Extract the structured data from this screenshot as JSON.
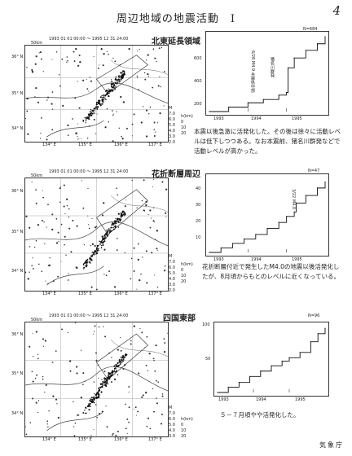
{
  "page_title": "周辺地域の地震活動　I",
  "page_number": "4",
  "agency": "気象庁",
  "sections": [
    {
      "heading": "北東延長領域",
      "date_range": "1993 01 01 00:00  ～  1995 12 31 24:00",
      "scale": "50km",
      "lat_labels": [
        "36° N",
        "35° N",
        "34° N"
      ],
      "lon_labels": [
        "134° E",
        "135° E",
        "136° E",
        "137° E"
      ],
      "legend_m_label": "M",
      "legend_m": [
        "7.0",
        "6.0",
        "5.0",
        "4.0",
        "3.0",
        "2.0"
      ],
      "legend_h_label": "h(km)",
      "legend_h": [
        "0",
        "10",
        "20"
      ],
      "count": "N=684",
      "graph_years": [
        "1993",
        "1994",
        "1995"
      ],
      "graph_y_ticks": [
        "200",
        "400",
        "600"
      ],
      "annotation1": "6/28 M4.9 兵庫県中部",
      "annotation2": "猪名川群発",
      "description": "本震以後急激に活発化した。その後は徐々に活動レベルは低下しつつある。なお本震前、猪名川群発などで活動レベルが高かった。",
      "chart_data": {
        "type": "line",
        "x": [
          1993.0,
          1993.5,
          1994.0,
          1994.4,
          1994.8,
          1995.0,
          1995.04,
          1995.2,
          1995.5,
          1995.8,
          1996.0
        ],
        "y": [
          0,
          40,
          80,
          110,
          150,
          175,
          400,
          490,
          560,
          620,
          684
        ],
        "xlim": [
          1993,
          1996
        ],
        "ylim": [
          0,
          700
        ]
      }
    },
    {
      "heading": "花折断層周辺",
      "date_range": "1993 01 01 00:00  ～  1995 12 31 24:00",
      "scale": "50km",
      "lat_labels": [
        "36° N",
        "35° N",
        "34° N"
      ],
      "lon_labels": [
        "134° E",
        "135° E",
        "136° E",
        "137° E"
      ],
      "legend_m_label": "M",
      "legend_m": [
        "7.0",
        "6.0",
        "5.0",
        "4.0",
        "3.0",
        "2.0"
      ],
      "legend_h_label": "h(km)",
      "legend_h": [
        "0",
        "10",
        "20"
      ],
      "count": "N=47",
      "graph_years": [
        "1993",
        "1994",
        "1995"
      ],
      "graph_y_ticks": [
        "10",
        "20",
        "30",
        "40"
      ],
      "annotation1": "3/22 M4.0",
      "description": "花折断層付近で発生したM4.0の地震以後活発化したが、8月頃からもとのレベルに近くなっている。",
      "chart_data": {
        "type": "line",
        "x": [
          1993.0,
          1993.3,
          1993.6,
          1993.9,
          1994.2,
          1994.5,
          1994.8,
          1995.0,
          1995.2,
          1995.25,
          1995.5,
          1995.8,
          1996.0
        ],
        "y": [
          0,
          3,
          6,
          9,
          12,
          16,
          20,
          24,
          27,
          33,
          38,
          43,
          47
        ],
        "xlim": [
          1993,
          1996
        ],
        "ylim": [
          0,
          50
        ]
      }
    },
    {
      "heading": "四国東部",
      "date_range": "1993 01 01 00:00  ～  1995 12 31 24:00",
      "scale": "50km",
      "lat_labels": [
        "36° N",
        "35° N",
        "34° N"
      ],
      "lon_labels": [
        "134° E",
        "135° E",
        "136° E",
        "137° E"
      ],
      "legend_m_label": "M",
      "legend_m": [
        "7.0",
        "6.0",
        "5.0",
        "4.0",
        "3.0"
      ],
      "legend_h_label": "h(km)",
      "legend_h": [
        "0",
        "10",
        "20"
      ],
      "count": "N=96",
      "graph_years": [
        "1993",
        "1994",
        "1995"
      ],
      "graph_y_ticks": [
        "50",
        "100"
      ],
      "description": "５－７月頃やや活発化した。",
      "chart_data": {
        "type": "line",
        "x": [
          1993.0,
          1993.3,
          1993.6,
          1993.9,
          1994.2,
          1994.5,
          1994.8,
          1995.0,
          1995.3,
          1995.6,
          1995.8,
          1996.0
        ],
        "y": [
          0,
          8,
          15,
          24,
          32,
          40,
          47,
          52,
          60,
          76,
          88,
          96
        ],
        "xlim": [
          1993,
          1996
        ],
        "ylim": [
          0,
          100
        ]
      }
    }
  ]
}
